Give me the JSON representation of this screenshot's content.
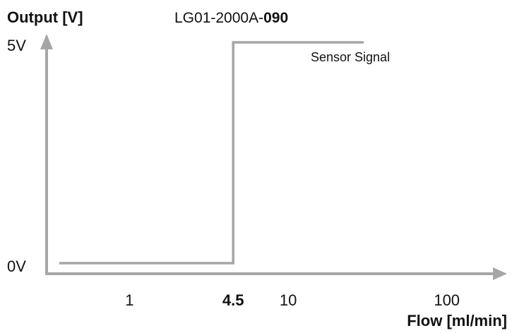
{
  "chart_data": {
    "type": "line",
    "title_prefix": "LG01-2000A-",
    "title_suffix": "090",
    "ylabel": "Output [V]",
    "xlabel": "Flow [ml/min]",
    "x_scale": "log",
    "xlim": [
      0.3,
      180
    ],
    "ylim": [
      0,
      5
    ],
    "x_ticks": [
      {
        "value": 1,
        "label": "1",
        "bold": false
      },
      {
        "value": 4.5,
        "label": "4.5",
        "bold": true
      },
      {
        "value": 10,
        "label": "10",
        "bold": false
      },
      {
        "value": 100,
        "label": "100",
        "bold": false
      }
    ],
    "y_ticks": [
      {
        "value": 0,
        "label": "0V"
      },
      {
        "value": 5,
        "label": "5V"
      }
    ],
    "series": [
      {
        "name": "Sensor Signal",
        "color": "#a6a6a6",
        "points": [
          [
            0.36,
            0
          ],
          [
            4.5,
            0
          ],
          [
            4.5,
            5
          ],
          [
            30,
            5
          ]
        ]
      }
    ],
    "axis_color": "#a6a6a6",
    "grid": false
  }
}
